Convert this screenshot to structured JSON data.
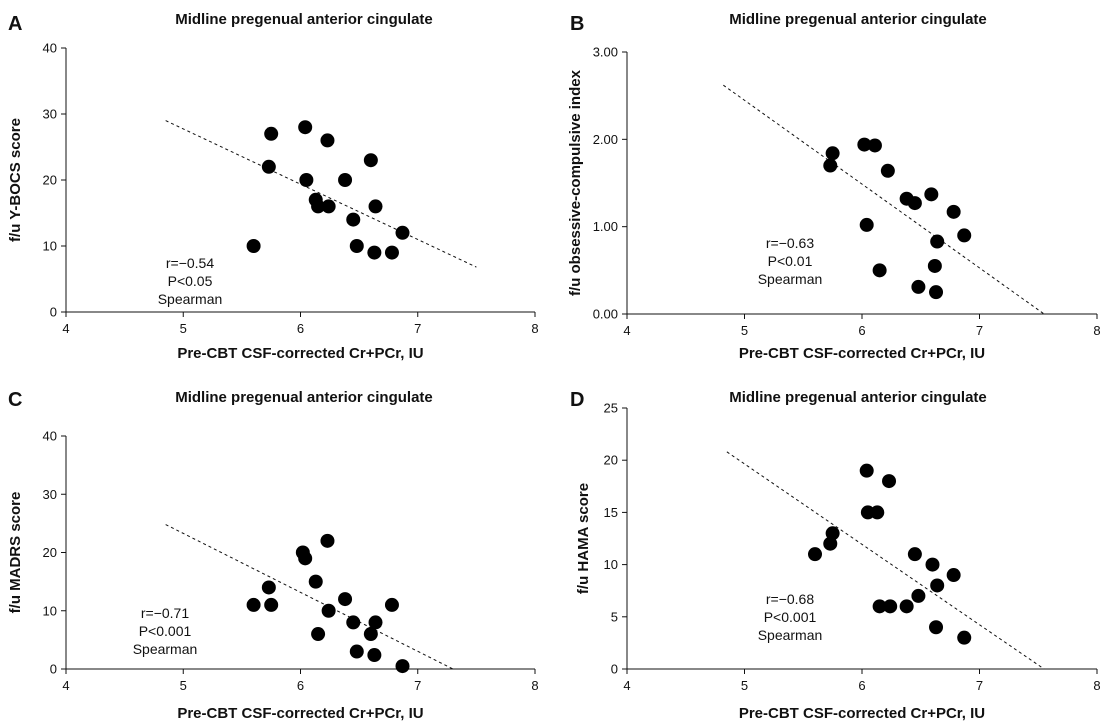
{
  "chart_data": [
    {
      "type": "scatter",
      "panel_label": "A",
      "title": "Midline pregenual anterior cingulate",
      "xlabel": "Pre-CBT CSF-corrected Cr+PCr, IU",
      "ylabel": "f/u Y-BOCS score",
      "xlim": [
        4,
        8
      ],
      "ylim": [
        0,
        40
      ],
      "xticks": [
        "4",
        "5",
        "6",
        "7",
        "8"
      ],
      "yticks": [
        "0",
        "10",
        "20",
        "30",
        "40"
      ],
      "points": [
        {
          "x": 5.6,
          "y": 10
        },
        {
          "x": 5.73,
          "y": 22
        },
        {
          "x": 5.75,
          "y": 27
        },
        {
          "x": 6.04,
          "y": 28
        },
        {
          "x": 6.05,
          "y": 20
        },
        {
          "x": 6.13,
          "y": 17
        },
        {
          "x": 6.15,
          "y": 16
        },
        {
          "x": 6.23,
          "y": 26
        },
        {
          "x": 6.24,
          "y": 16
        },
        {
          "x": 6.38,
          "y": 20
        },
        {
          "x": 6.45,
          "y": 14
        },
        {
          "x": 6.48,
          "y": 10
        },
        {
          "x": 6.6,
          "y": 23
        },
        {
          "x": 6.63,
          "y": 9
        },
        {
          "x": 6.64,
          "y": 16
        },
        {
          "x": 6.78,
          "y": 9
        },
        {
          "x": 6.87,
          "y": 12
        }
      ],
      "trend": {
        "x": [
          4.85,
          7.5
        ],
        "y": [
          29,
          6.8
        ]
      },
      "stats": {
        "r": "r=−0.54",
        "p": "P<0.05",
        "method": "Spearman"
      },
      "grid": false
    },
    {
      "type": "scatter",
      "panel_label": "B",
      "title": "Midline pregenual anterior cingulate",
      "xlabel": "Pre-CBT CSF-corrected Cr+PCr, IU",
      "ylabel": "f/u obsessive-compulsive index",
      "xlim": [
        4,
        8
      ],
      "ylim": [
        0,
        3
      ],
      "xticks": [
        "4",
        "5",
        "6",
        "7",
        "8"
      ],
      "yticks": [
        "0.00",
        "1.00",
        "2.00",
        "3.00"
      ],
      "points": [
        {
          "x": 5.73,
          "y": 1.7
        },
        {
          "x": 5.75,
          "y": 1.84
        },
        {
          "x": 6.02,
          "y": 1.94
        },
        {
          "x": 6.04,
          "y": 1.02
        },
        {
          "x": 6.11,
          "y": 1.93
        },
        {
          "x": 6.15,
          "y": 0.5
        },
        {
          "x": 6.22,
          "y": 1.64
        },
        {
          "x": 6.38,
          "y": 1.32
        },
        {
          "x": 6.45,
          "y": 1.27
        },
        {
          "x": 6.48,
          "y": 0.31
        },
        {
          "x": 6.59,
          "y": 1.37
        },
        {
          "x": 6.62,
          "y": 0.55
        },
        {
          "x": 6.63,
          "y": 0.25
        },
        {
          "x": 6.64,
          "y": 0.83
        },
        {
          "x": 6.78,
          "y": 1.17
        },
        {
          "x": 6.87,
          "y": 0.9
        }
      ],
      "trend": {
        "x": [
          4.82,
          7.55
        ],
        "y": [
          2.62,
          0
        ]
      },
      "stats": {
        "r": "r=−0.63",
        "p": "P<0.01",
        "method": "Spearman"
      },
      "grid": false
    },
    {
      "type": "scatter",
      "panel_label": "C",
      "title": "Midline pregenual anterior cingulate",
      "xlabel": "Pre-CBT CSF-corrected Cr+PCr, IU",
      "ylabel": "f/u MADRS score",
      "xlim": [
        4,
        8
      ],
      "ylim": [
        0,
        40
      ],
      "xticks": [
        "4",
        "5",
        "6",
        "7",
        "8"
      ],
      "yticks": [
        "0",
        "10",
        "20",
        "30",
        "40"
      ],
      "points": [
        {
          "x": 5.6,
          "y": 11
        },
        {
          "x": 5.73,
          "y": 14
        },
        {
          "x": 5.75,
          "y": 11
        },
        {
          "x": 6.02,
          "y": 20
        },
        {
          "x": 6.04,
          "y": 19
        },
        {
          "x": 6.13,
          "y": 15
        },
        {
          "x": 6.15,
          "y": 6
        },
        {
          "x": 6.23,
          "y": 22
        },
        {
          "x": 6.24,
          "y": 10
        },
        {
          "x": 6.38,
          "y": 12
        },
        {
          "x": 6.45,
          "y": 8
        },
        {
          "x": 6.48,
          "y": 3
        },
        {
          "x": 6.6,
          "y": 6
        },
        {
          "x": 6.63,
          "y": 2.4
        },
        {
          "x": 6.64,
          "y": 8
        },
        {
          "x": 6.78,
          "y": 11
        },
        {
          "x": 6.87,
          "y": 0.5
        }
      ],
      "trend": {
        "x": [
          4.85,
          7.3
        ],
        "y": [
          24.8,
          0
        ]
      },
      "stats": {
        "r": "r=−0.71",
        "p": "P<0.001",
        "method": "Spearman"
      },
      "grid": false
    },
    {
      "type": "scatter",
      "panel_label": "D",
      "title": "Midline pregenual anterior cingulate",
      "xlabel": "Pre-CBT CSF-corrected Cr+PCr, IU",
      "ylabel": "f/u HAMA score",
      "xlim": [
        4,
        8
      ],
      "ylim": [
        0,
        25
      ],
      "xticks": [
        "4",
        "5",
        "6",
        "7",
        "8"
      ],
      "yticks": [
        "0",
        "5",
        "10",
        "15",
        "20",
        "25"
      ],
      "points": [
        {
          "x": 5.6,
          "y": 11
        },
        {
          "x": 5.73,
          "y": 12
        },
        {
          "x": 5.75,
          "y": 13
        },
        {
          "x": 6.04,
          "y": 19
        },
        {
          "x": 6.05,
          "y": 15
        },
        {
          "x": 6.13,
          "y": 15
        },
        {
          "x": 6.15,
          "y": 6
        },
        {
          "x": 6.23,
          "y": 18
        },
        {
          "x": 6.24,
          "y": 6
        },
        {
          "x": 6.38,
          "y": 6
        },
        {
          "x": 6.45,
          "y": 11
        },
        {
          "x": 6.48,
          "y": 7
        },
        {
          "x": 6.6,
          "y": 10
        },
        {
          "x": 6.63,
          "y": 4
        },
        {
          "x": 6.64,
          "y": 8
        },
        {
          "x": 6.78,
          "y": 9
        },
        {
          "x": 6.87,
          "y": 3
        }
      ],
      "trend": {
        "x": [
          4.85,
          7.55
        ],
        "y": [
          20.8,
          0
        ]
      },
      "stats": {
        "r": "r=−0.68",
        "p": "P<0.001",
        "method": "Spearman"
      },
      "grid": false
    }
  ]
}
